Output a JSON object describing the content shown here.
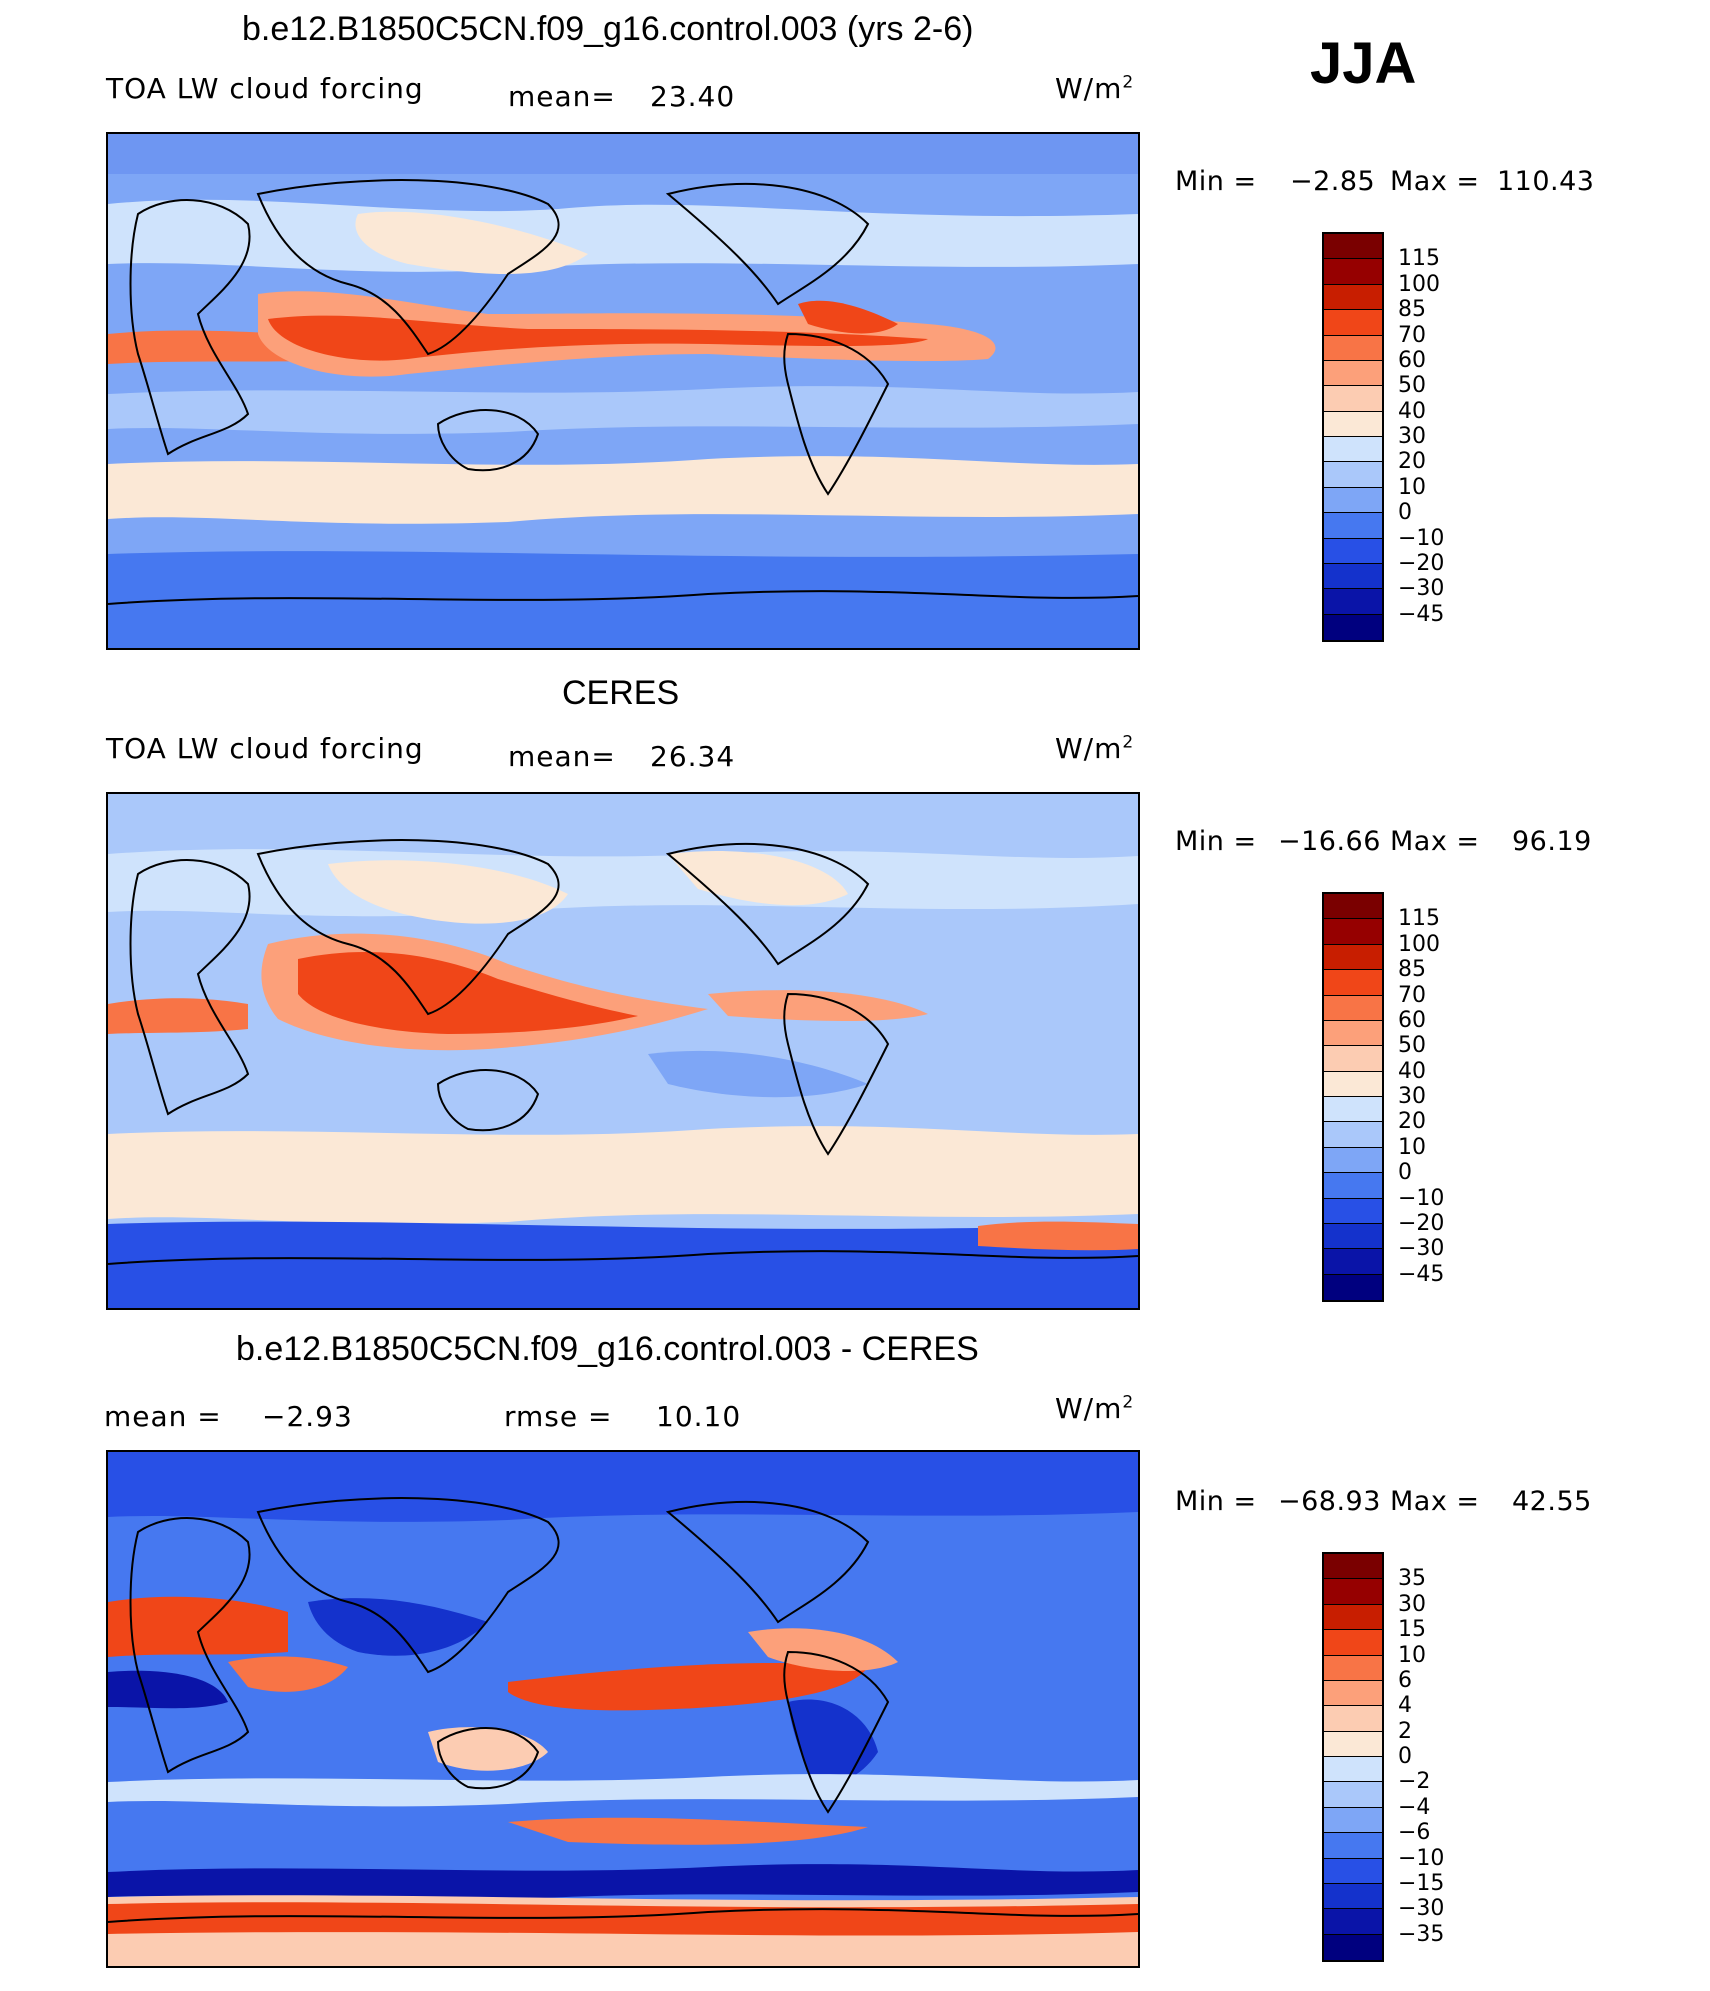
{
  "season": "JJA",
  "units_label": "W/m",
  "units_sup": "2",
  "palette_model": [
    "#00007f",
    "#0a14a8",
    "#1432cc",
    "#2850e6",
    "#4678f0",
    "#7ea6f6",
    "#aac8fa",
    "#cfe3fc",
    "#fbe8d6",
    "#fcccb2",
    "#fca07a",
    "#f87446",
    "#f04618",
    "#c81e00",
    "#960000"
  ],
  "palette_diff": [
    "#00007f",
    "#0a14a8",
    "#1432cc",
    "#2850e6",
    "#4678f0",
    "#7ea6f6",
    "#aac8fa",
    "#cfe3fc",
    "#fbe8d6",
    "#fcccb2",
    "#fca07a",
    "#f87446",
    "#f04618",
    "#c81e00",
    "#960000"
  ],
  "panels": [
    {
      "title": "b.e12.B1850C5CN.f09_g16.control.003 (yrs 2-6)",
      "variable": "TOA LW cloud forcing",
      "stat1_label": "mean=",
      "stat1_value": "23.40",
      "stat2_label": "",
      "stat2_value": "",
      "min_label": "Min  =",
      "min_value": "−2.85",
      "max_label": "Max  =",
      "max_value": "110.43",
      "levels": [
        "115",
        "100",
        "85",
        "70",
        "60",
        "50",
        "40",
        "30",
        "20",
        "10",
        "0",
        "−10",
        "−20",
        "−30",
        "−45"
      ]
    },
    {
      "title": "CERES",
      "variable": "TOA LW cloud forcing",
      "stat1_label": "mean=",
      "stat1_value": "26.34",
      "stat2_label": "",
      "stat2_value": "",
      "min_label": "Min  =",
      "min_value": "−16.66",
      "max_label": "Max  =",
      "max_value": "96.19",
      "levels": [
        "115",
        "100",
        "85",
        "70",
        "60",
        "50",
        "40",
        "30",
        "20",
        "10",
        "0",
        "−10",
        "−20",
        "−30",
        "−45"
      ]
    },
    {
      "title": "b.e12.B1850C5CN.f09_g16.control.003 - CERES",
      "variable": "",
      "stat1_label": "mean  =",
      "stat1_value": "−2.93",
      "stat2_label": "rmse  =",
      "stat2_value": "10.10",
      "min_label": "Min  =",
      "min_value": "−68.93",
      "max_label": "Max  =",
      "max_value": "42.55",
      "levels": [
        "35",
        "30",
        "15",
        "10",
        "6",
        "4",
        "2",
        "0",
        "−2",
        "−4",
        "−6",
        "−10",
        "−15",
        "−30",
        "−35"
      ]
    }
  ]
}
